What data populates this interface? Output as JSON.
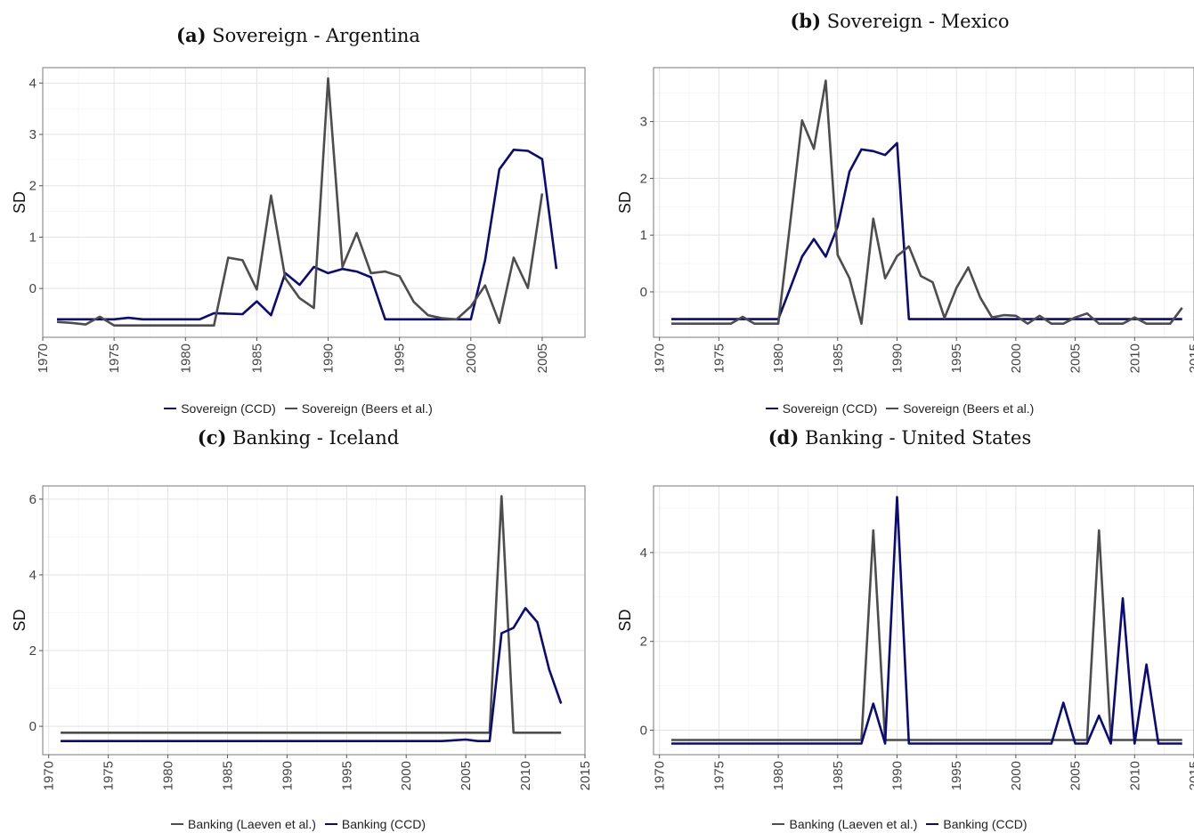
{
  "chart_data": [
    {
      "type": "line",
      "panel_label": "(a)",
      "title": "Sovereign - Argentina",
      "ylabel": "SD",
      "xlim": [
        1970,
        2008
      ],
      "ylim": [
        -0.95,
        4.3
      ],
      "xticks": [
        1970,
        1975,
        1980,
        1985,
        1990,
        1995,
        2000,
        2005
      ],
      "yticks": [
        0,
        1,
        2,
        3,
        4
      ],
      "grid": true,
      "legend_position": "bottom",
      "series": [
        {
          "name": "Sovereign (CCD)",
          "color": "#0a0a78",
          "x": [
            1971,
            1972,
            1973,
            1974,
            1975,
            1976,
            1977,
            1978,
            1979,
            1980,
            1981,
            1982,
            1983,
            1984,
            1985,
            1986,
            1987,
            1988,
            1989,
            1990,
            1991,
            1992,
            1993,
            1994,
            1995,
            1996,
            1997,
            1998,
            1999,
            2000,
            2001,
            2002,
            2003,
            2004,
            2005,
            2006
          ],
          "y": [
            -0.6,
            -0.6,
            -0.6,
            -0.6,
            -0.6,
            -0.57,
            -0.6,
            -0.6,
            -0.6,
            -0.6,
            -0.6,
            -0.48,
            -0.49,
            -0.5,
            -0.25,
            -0.52,
            0.3,
            0.07,
            0.42,
            0.3,
            0.38,
            0.33,
            0.22,
            -0.6,
            -0.6,
            -0.6,
            -0.6,
            -0.6,
            -0.6,
            -0.6,
            0.55,
            2.32,
            2.7,
            2.68,
            2.52,
            0.38
          ]
        },
        {
          "name": "Sovereign (Beers et al.)",
          "color": "#4d4d4d",
          "x": [
            1971,
            1972,
            1973,
            1974,
            1975,
            1976,
            1977,
            1978,
            1979,
            1980,
            1981,
            1982,
            1983,
            1984,
            1985,
            1986,
            1987,
            1988,
            1989,
            1990,
            1991,
            1992,
            1993,
            1994,
            1995,
            1996,
            1997,
            1998,
            1999,
            2000,
            2001,
            2002,
            2003,
            2004,
            2005
          ],
          "y": [
            -0.65,
            -0.67,
            -0.7,
            -0.55,
            -0.72,
            -0.72,
            -0.72,
            -0.72,
            -0.72,
            -0.72,
            -0.72,
            -0.72,
            0.6,
            0.55,
            -0.02,
            1.81,
            0.2,
            -0.19,
            -0.38,
            4.09,
            0.42,
            1.08,
            0.3,
            0.33,
            0.24,
            -0.26,
            -0.52,
            -0.58,
            -0.6,
            -0.35,
            0.06,
            -0.67,
            0.6,
            0.01,
            1.85
          ]
        }
      ]
    },
    {
      "type": "line",
      "panel_label": "(b)",
      "title": "Sovereign - Mexico",
      "ylabel": "SD",
      "xlim": [
        1969.5,
        2015
      ],
      "ylim": [
        -0.8,
        3.95
      ],
      "xticks": [
        1970,
        1975,
        1980,
        1985,
        1990,
        1995,
        2000,
        2005,
        2010,
        2015
      ],
      "yticks": [
        0,
        1,
        2,
        3
      ],
      "grid": true,
      "legend_position": "bottom",
      "series": [
        {
          "name": "Sovereign (CCD)",
          "color": "#0a0a78",
          "x": [
            1971,
            1972,
            1973,
            1974,
            1975,
            1976,
            1977,
            1978,
            1979,
            1980,
            1981,
            1982,
            1983,
            1984,
            1985,
            1986,
            1987,
            1988,
            1989,
            1990,
            1991,
            1992,
            1993,
            1994,
            1995,
            1996,
            1997,
            1998,
            1999,
            2000,
            2001,
            2002,
            2003,
            2004,
            2005,
            2006,
            2007,
            2008,
            2009,
            2010,
            2011,
            2012,
            2013,
            2014
          ],
          "y": [
            -0.48,
            -0.48,
            -0.48,
            -0.48,
            -0.48,
            -0.48,
            -0.48,
            -0.48,
            -0.48,
            -0.48,
            0.06,
            0.62,
            0.93,
            0.62,
            1.15,
            2.12,
            2.51,
            2.48,
            2.41,
            2.62,
            -0.48,
            -0.48,
            -0.48,
            -0.48,
            -0.48,
            -0.48,
            -0.48,
            -0.48,
            -0.48,
            -0.48,
            -0.48,
            -0.48,
            -0.48,
            -0.48,
            -0.48,
            -0.48,
            -0.48,
            -0.48,
            -0.48,
            -0.48,
            -0.48,
            -0.48,
            -0.48,
            -0.48
          ]
        },
        {
          "name": "Sovereign (Beers et al.)",
          "color": "#4d4d4d",
          "x": [
            1971,
            1972,
            1973,
            1974,
            1975,
            1976,
            1977,
            1978,
            1979,
            1980,
            1981,
            1982,
            1983,
            1984,
            1985,
            1986,
            1987,
            1988,
            1989,
            1990,
            1991,
            1992,
            1993,
            1994,
            1995,
            1996,
            1997,
            1998,
            1999,
            2000,
            2001,
            2002,
            2003,
            2004,
            2005,
            2006,
            2007,
            2008,
            2009,
            2010,
            2011,
            2012,
            2013,
            2014
          ],
          "y": [
            -0.56,
            -0.56,
            -0.56,
            -0.56,
            -0.56,
            -0.56,
            -0.44,
            -0.56,
            -0.56,
            -0.56,
            1.2,
            3.02,
            2.52,
            3.72,
            0.65,
            0.24,
            -0.56,
            1.29,
            0.24,
            0.63,
            0.8,
            0.28,
            0.17,
            -0.46,
            0.07,
            0.43,
            -0.1,
            -0.45,
            -0.41,
            -0.42,
            -0.56,
            -0.42,
            -0.56,
            -0.56,
            -0.45,
            -0.38,
            -0.56,
            -0.56,
            -0.56,
            -0.45,
            -0.56,
            -0.56,
            -0.56,
            -0.28
          ]
        }
      ]
    },
    {
      "type": "line",
      "panel_label": "(c)",
      "title": "Banking - Iceland",
      "ylabel": "SD",
      "xlim": [
        1969.5,
        2015
      ],
      "ylim": [
        -0.75,
        6.35
      ],
      "xticks": [
        1970,
        1975,
        1980,
        1985,
        1990,
        1995,
        2000,
        2005,
        2010,
        2015
      ],
      "yticks": [
        0,
        2,
        4,
        6
      ],
      "grid": true,
      "legend_position": "bottom",
      "series": [
        {
          "name": "Banking (Laeven et al.)",
          "color": "#4d4d4d",
          "x": [
            1971,
            2007,
            2008,
            2009,
            2013
          ],
          "y": [
            -0.17,
            -0.17,
            6.08,
            -0.17,
            -0.17
          ]
        },
        {
          "name": "Banking (CCD)",
          "color": "#0a0a78",
          "x": [
            1971,
            2003,
            2005,
            2006,
            2007,
            2008,
            2009,
            2010,
            2011,
            2012,
            2013
          ],
          "y": [
            -0.39,
            -0.39,
            -0.35,
            -0.39,
            -0.39,
            2.46,
            2.6,
            3.12,
            2.75,
            1.5,
            0.6
          ]
        }
      ]
    },
    {
      "type": "line",
      "panel_label": "(d)",
      "title": "Banking - United States",
      "ylabel": "SD",
      "xlim": [
        1969.5,
        2015
      ],
      "ylim": [
        -0.55,
        5.5
      ],
      "xticks": [
        1970,
        1975,
        1980,
        1985,
        1990,
        1995,
        2000,
        2005,
        2010,
        2015
      ],
      "yticks": [
        0,
        2,
        4
      ],
      "grid": true,
      "legend_position": "bottom",
      "series": [
        {
          "name": "Banking (Laeven et al.)",
          "color": "#4d4d4d",
          "x": [
            1971,
            1987,
            1988,
            1989,
            2006,
            2007,
            2008,
            2014
          ],
          "y": [
            -0.22,
            -0.22,
            4.5,
            -0.22,
            -0.22,
            4.5,
            -0.22,
            -0.22
          ]
        },
        {
          "name": "Banking (CCD)",
          "color": "#0a0a78",
          "x": [
            1971,
            1987,
            1988,
            1989,
            1990,
            1991,
            2003,
            2004,
            2005,
            2006,
            2007,
            2008,
            2009,
            2010,
            2011,
            2012,
            2014
          ],
          "y": [
            -0.3,
            -0.3,
            0.6,
            -0.3,
            5.25,
            -0.3,
            -0.3,
            0.62,
            -0.3,
            -0.3,
            0.33,
            -0.3,
            2.97,
            -0.3,
            1.48,
            -0.3,
            -0.3
          ]
        }
      ]
    }
  ]
}
